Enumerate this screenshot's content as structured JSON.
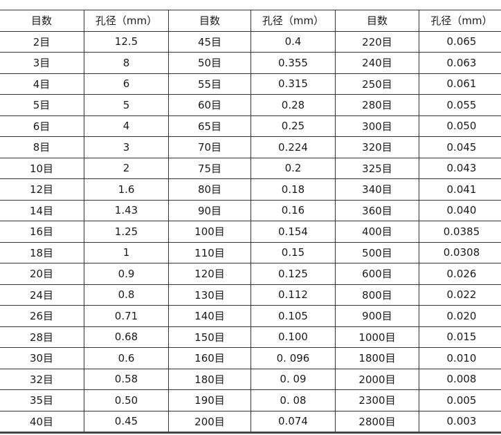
{
  "headers": [
    "目数",
    "孔径（mm）",
    "目数",
    "孔径（mm）",
    "目数",
    "孔径（mm）"
  ],
  "rows": [
    [
      "2目",
      "12.5",
      "45目",
      "0.4",
      "220目",
      "0.065"
    ],
    [
      "3目",
      "8",
      "50目",
      "0.355",
      "240目",
      "0.063"
    ],
    [
      "4目",
      "6",
      "55目",
      "0.315",
      "250目",
      "0.061"
    ],
    [
      "5目",
      "5",
      "60目",
      "0.28",
      "280目",
      "0.055"
    ],
    [
      "6目",
      "4",
      "65目",
      "0.25",
      "300目",
      "0.050"
    ],
    [
      "8目",
      "3",
      "70目",
      "0.224",
      "320目",
      "0.045"
    ],
    [
      "10目",
      "2",
      "75目",
      "0.2",
      "325目",
      "0.043"
    ],
    [
      "12目",
      "1.6",
      "80目",
      "0.18",
      "340目",
      "0.041"
    ],
    [
      "14目",
      "1.43",
      "90目",
      "0.16",
      "360目",
      "0.040"
    ],
    [
      "16目",
      "1.25",
      "100目",
      "0.154",
      "400目",
      "0.0385"
    ],
    [
      "18目",
      "1",
      "110目",
      "0.15",
      "500目",
      "0.0308"
    ],
    [
      "20目",
      "0.9",
      "120目",
      "0.125",
      "600目",
      "0.026"
    ],
    [
      "24目",
      "0.8",
      "130目",
      "0.112",
      "800目",
      "0.022"
    ],
    [
      "26目",
      "0.71",
      "140目",
      "0.105",
      "900目",
      "0.020"
    ],
    [
      "28目",
      "0.68",
      "150目",
      "0.100",
      "1000目",
      "0.015"
    ],
    [
      "30目",
      "0.6",
      "160目",
      "0. 096",
      "1800目",
      "0.010"
    ],
    [
      "32目",
      "0.58",
      "180目",
      "0. 09",
      "2000目",
      "0.008"
    ],
    [
      "35目",
      "0.50",
      "190目",
      "0. 08",
      "2300目",
      "0.005"
    ],
    [
      "40目",
      "0.45",
      "200目",
      "0.074",
      "2800目",
      "0.003"
    ]
  ]
}
